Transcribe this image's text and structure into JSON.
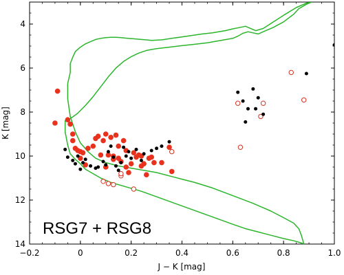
{
  "chart_data": {
    "type": "scatter",
    "title": "",
    "annotation": "RSG7 + RSG8",
    "xlabel": "J − K [mag]",
    "ylabel": "K [mag]",
    "xlim": [
      -0.2,
      1.0
    ],
    "ylim": [
      14,
      3
    ],
    "y_inverted": true,
    "x_ticks": [
      -0.2,
      0.0,
      0.2,
      0.4,
      0.6,
      0.8,
      1.0
    ],
    "x_tick_labels": [
      "−0.2",
      "0",
      "0.2",
      "0.4",
      "0.6",
      "0.8",
      "1.0"
    ],
    "y_ticks": [
      4,
      6,
      8,
      10,
      12,
      14
    ],
    "y_tick_labels": [
      "4",
      "6",
      "8",
      "10",
      "12",
      "14"
    ],
    "grid": false,
    "colors": {
      "isochrone": "#2bb52b",
      "red_filled": "#e8321e",
      "red_open": "#d62f1e",
      "black": "#000000"
    },
    "series": [
      {
        "marker": "filled-red-circle",
        "x": [
          -0.09,
          -0.1,
          -0.05,
          -0.04,
          -0.03,
          -0.03,
          -0.02,
          -0.01,
          0.0,
          0.01,
          0.03,
          0.05,
          0.06,
          0.07,
          0.08,
          0.09,
          0.1,
          0.11,
          0.12,
          0.13,
          0.14,
          0.15,
          0.15,
          0.16,
          0.17,
          0.18,
          0.19,
          0.2,
          0.21,
          0.22,
          0.23,
          0.24,
          0.25,
          0.26,
          0.27,
          0.28,
          0.29,
          0.32,
          0.35,
          0.36,
          0.0,
          0.02,
          0.1,
          0.13,
          0.18,
          0.24
        ],
        "y": [
          7.05,
          8.5,
          8.35,
          8.55,
          9.0,
          9.3,
          9.65,
          9.75,
          9.8,
          9.85,
          9.65,
          9.55,
          9.2,
          9.1,
          9.95,
          9.3,
          9.0,
          9.95,
          9.15,
          10.0,
          9.05,
          9.55,
          10.1,
          10.25,
          9.3,
          10.5,
          10.75,
          10.35,
          9.85,
          10.05,
          9.95,
          10.45,
          10.35,
          10.85,
          10.1,
          10.05,
          10.3,
          10.3,
          9.6,
          10.7,
          10.1,
          10.4,
          10.5,
          10.15,
          9.75,
          10.0
        ]
      },
      {
        "marker": "open-red-circle",
        "x": [
          0.09,
          0.11,
          0.13,
          0.16,
          0.16,
          0.21,
          0.36,
          0.62,
          0.63,
          0.71,
          0.72,
          0.83,
          0.88
        ],
        "y": [
          11.15,
          11.25,
          11.3,
          10.9,
          10.8,
          11.5,
          9.8,
          7.6,
          9.6,
          8.2,
          7.6,
          6.2,
          7.45
        ]
      },
      {
        "marker": "filled-black-circle",
        "x": [
          -0.06,
          -0.05,
          -0.03,
          -0.02,
          -0.01,
          0.0,
          0.01,
          0.02,
          0.04,
          0.06,
          0.07,
          0.09,
          0.1,
          0.11,
          0.12,
          0.13,
          0.14,
          0.15,
          0.16,
          0.17,
          0.18,
          0.19,
          0.2,
          0.22,
          0.24,
          0.25,
          0.28,
          0.3,
          0.32,
          0.35,
          0.62,
          0.64,
          0.65,
          0.66,
          0.68,
          0.69,
          0.7,
          0.72,
          0.89,
          1.0
        ],
        "y": [
          9.7,
          10.05,
          10.2,
          10.35,
          10.0,
          10.6,
          10.3,
          10.15,
          10.45,
          10.55,
          10.5,
          10.25,
          10.4,
          9.8,
          9.55,
          10.05,
          10.45,
          10.65,
          10.3,
          9.6,
          10.0,
          9.8,
          10.1,
          9.7,
          10.2,
          9.9,
          9.75,
          9.65,
          9.55,
          9.35,
          7.1,
          7.5,
          8.45,
          7.85,
          6.95,
          7.85,
          7.35,
          8.1,
          6.25,
          4.95
        ]
      }
    ],
    "curve": {
      "name": "",
      "x": [
        0.88,
        0.87,
        0.86,
        0.84,
        0.8,
        0.75,
        0.68,
        0.6,
        0.52,
        0.45,
        0.4,
        0.35,
        0.3,
        0.25,
        0.2,
        0.15,
        0.1,
        0.06,
        0.03,
        0.0,
        -0.02,
        -0.04,
        -0.05,
        -0.05,
        -0.04,
        -0.04,
        -0.03,
        -0.02,
        0.0,
        0.02,
        0.04,
        0.06,
        0.08,
        0.1,
        0.12,
        0.14,
        0.16,
        0.18,
        0.2,
        0.22,
        0.24,
        0.26,
        0.28,
        0.32,
        0.36,
        0.42,
        0.48,
        0.52,
        0.57,
        0.6,
        0.63,
        0.65,
        0.66,
        0.67,
        0.69,
        0.72,
        0.74,
        0.8,
        0.85,
        0.89,
        0.91,
        0.89,
        0.86,
        0.84,
        0.8,
        0.76,
        0.72,
        0.7,
        0.68,
        0.66,
        0.64,
        0.62,
        0.6,
        0.55,
        0.5,
        0.45,
        0.4,
        0.35,
        0.3,
        0.26,
        0.23,
        0.2,
        0.17,
        0.14,
        0.11,
        0.08,
        0.05,
        0.02,
        -0.01,
        -0.04,
        -0.06,
        -0.06,
        -0.05,
        -0.04,
        -0.02,
        0.0,
        0.02,
        0.05,
        0.08,
        0.12,
        0.18,
        0.24,
        0.3,
        0.36,
        0.42,
        0.48,
        0.54,
        0.6,
        0.65,
        0.7,
        0.75,
        0.8,
        0.84,
        0.87,
        0.88
      ],
      "y": [
        14.0,
        13.6,
        13.3,
        13.05,
        12.8,
        12.5,
        12.15,
        11.8,
        11.45,
        11.2,
        11.05,
        10.9,
        10.75,
        10.65,
        10.55,
        10.45,
        10.3,
        10.1,
        9.8,
        9.4,
        8.9,
        8.2,
        7.4,
        6.7,
        6.2,
        5.8,
        5.5,
        5.25,
        5.05,
        4.9,
        4.8,
        4.7,
        4.65,
        4.62,
        4.6,
        4.6,
        4.62,
        4.64,
        4.66,
        4.68,
        4.7,
        4.72,
        4.74,
        4.72,
        4.65,
        4.55,
        4.45,
        4.4,
        4.3,
        4.22,
        4.15,
        4.1,
        4.15,
        4.2,
        4.3,
        4.2,
        4.05,
        3.6,
        3.25,
        3.05,
        3.0,
        3.1,
        3.3,
        3.55,
        3.9,
        4.15,
        4.35,
        4.45,
        4.4,
        4.35,
        4.42,
        4.55,
        4.65,
        4.75,
        4.85,
        4.92,
        4.98,
        5.05,
        5.12,
        5.2,
        5.32,
        5.48,
        5.7,
        6.0,
        6.4,
        6.85,
        7.3,
        7.7,
        8.05,
        8.3,
        8.4,
        8.9,
        9.5,
        9.9,
        10.15,
        10.35,
        10.6,
        10.8,
        11.0,
        11.2,
        11.4,
        11.6,
        11.85,
        12.1,
        12.35,
        12.6,
        12.85,
        13.1,
        13.3,
        13.45,
        13.6,
        13.75,
        13.85,
        13.95,
        14.0
      ]
    }
  }
}
